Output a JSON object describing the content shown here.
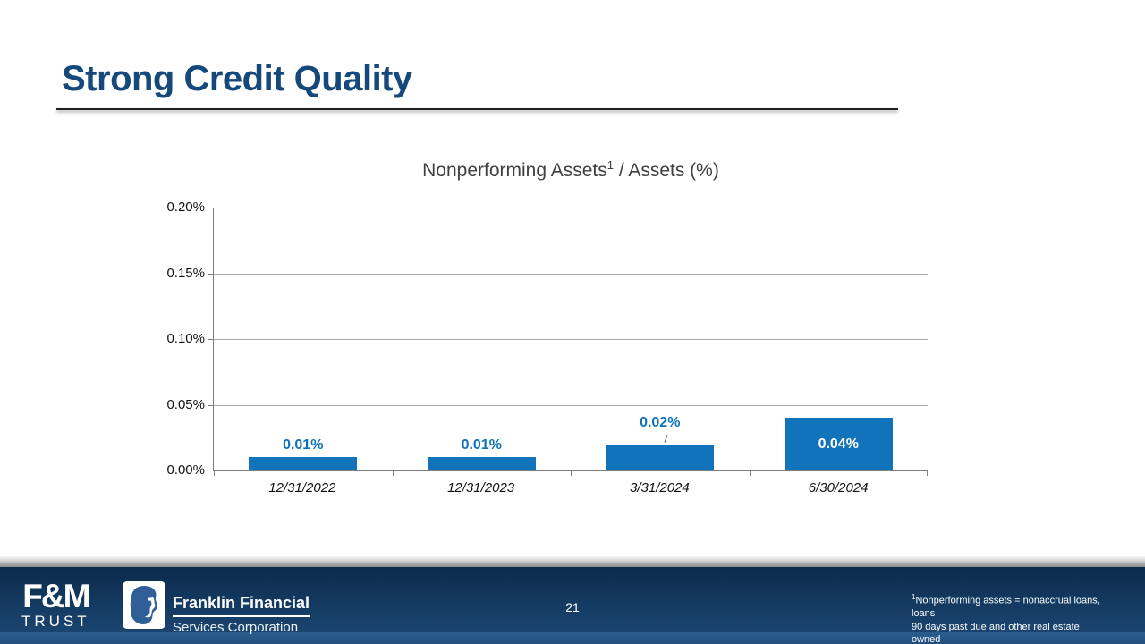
{
  "slide": {
    "title": "Strong Credit Quality"
  },
  "chart_data": {
    "type": "bar",
    "title_main": "Nonperforming Assets",
    "title_sup": "1",
    "title_rest": " / Assets (%)",
    "full_title": "Nonperforming Assets1 / Assets (%)",
    "categories": [
      "12/31/2022",
      "12/31/2023",
      "3/31/2024",
      "6/30/2024"
    ],
    "values": [
      0.01,
      0.01,
      0.02,
      0.04
    ],
    "value_labels": [
      "0.01%",
      "0.01%",
      "0.02%",
      "0.04%"
    ],
    "y_ticks": [
      "0.20%",
      "0.15%",
      "0.10%",
      "0.05%",
      "0.00%"
    ],
    "ylim": [
      0,
      0.2
    ],
    "xlabel": "",
    "ylabel": "",
    "grid": true,
    "legend": false,
    "bar_color": "#1173ba",
    "value_label_color": "#0d72b9",
    "inside_label_color": "#ffffff"
  },
  "footer": {
    "page_number": "21",
    "fm_trust_logo": {
      "monogram": "F&M",
      "wordmark": "TRUST"
    },
    "franklin_logo": {
      "name": "Franklin Financial",
      "subname": "Services Corporation"
    },
    "footnote": {
      "sup": "1",
      "line1": "Nonperforming assets = nonaccrual loans, loans",
      "line2": "90 days past due and other real estate owned"
    }
  },
  "colors": {
    "title_blue": "#15497c",
    "bar_blue": "#1173ba",
    "label_blue": "#0d72b9",
    "footer_navy_top": "#0c2a4b",
    "footer_navy_bottom": "#1b4470",
    "footer_strip": "#2c5c8f",
    "gridline_gray": "#a8a8a8"
  }
}
